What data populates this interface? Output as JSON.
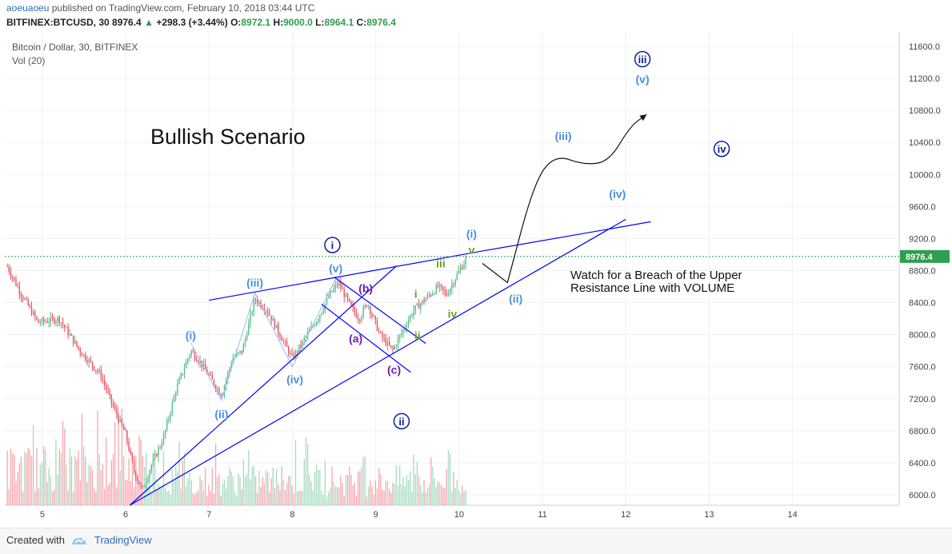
{
  "header": {
    "user": "aoeuaoeu",
    "published": "published on TradingView.com, February 10, 2018 03:44 UTC",
    "symbol": "BITFINEX:BTCUSD, 30",
    "last": "8976.4",
    "arrow": "▲",
    "change": "+298.3 (+3.44%)",
    "o_label": "O:",
    "o": "8972.1",
    "h_label": "H:",
    "h": "9000.0",
    "l_label": "L:",
    "l": "8964.1",
    "c_label": "C:",
    "c": "8976.4"
  },
  "legend": {
    "line1": "Bitcoin / Dollar, 30, BITFINEX",
    "line2": "Vol (20)"
  },
  "footer": {
    "created": "Created with",
    "brand": "TradingView"
  },
  "colors": {
    "up": "#53b987",
    "down": "#eb4d5c",
    "trend": "#0000ff",
    "wave_light": "#4a90e2",
    "wave_dark": "#0b1e9e",
    "wave_purple": "#6a1fa8",
    "wave_green": "#6aa22b",
    "price_line": "#2e9e4f"
  },
  "chart_data": {
    "type": "candlestick",
    "title": "Bullish Scenario",
    "annotation": "Watch for a Breach of the Upper Resistance Line with VOLUME",
    "last_price": 8976.4,
    "y_ticks": [
      6000,
      6400,
      6800,
      7200,
      7600,
      8000,
      8400,
      8800,
      9200,
      9600,
      10000,
      10400,
      10800,
      11200,
      11600
    ],
    "y_tick_labels": [
      "6000.0",
      "6400.0",
      "6800.0",
      "7200.0",
      "7600.0",
      "8000.0",
      "8400.0",
      "8800.0",
      "9200.0",
      "9600.0",
      "10000.0",
      "10400.0",
      "10800.0",
      "11200.0",
      "11600.0"
    ],
    "ylim": [
      5870,
      11780
    ],
    "x_ticks": [
      5,
      6,
      7,
      8,
      9,
      10,
      11,
      12,
      13,
      14
    ],
    "x_tick_labels": [
      "5",
      "6",
      "7",
      "8",
      "9",
      "10",
      "11",
      "12",
      "13",
      "14"
    ],
    "xlim": [
      4.55,
      15.28
    ],
    "x_unit": "day of February 2018",
    "price_path": [
      [
        4.58,
        8850
      ],
      [
        4.75,
        8500
      ],
      [
        4.95,
        8150
      ],
      [
        5.2,
        8200
      ],
      [
        5.45,
        7800
      ],
      [
        5.7,
        7500
      ],
      [
        5.85,
        7100
      ],
      [
        6.0,
        6750
      ],
      [
        6.1,
        6300
      ],
      [
        6.2,
        6050
      ],
      [
        6.3,
        6350
      ],
      [
        6.45,
        6700
      ],
      [
        6.6,
        7300
      ],
      [
        6.78,
        7800
      ],
      [
        6.9,
        7650
      ],
      [
        7.05,
        7400
      ],
      [
        7.15,
        7250
      ],
      [
        7.28,
        7700
      ],
      [
        7.4,
        7800
      ],
      [
        7.55,
        8450
      ],
      [
        7.7,
        8300
      ],
      [
        7.85,
        8000
      ],
      [
        8.0,
        7700
      ],
      [
        8.15,
        7950
      ],
      [
        8.3,
        8200
      ],
      [
        8.45,
        8500
      ],
      [
        8.55,
        8650
      ],
      [
        8.7,
        8350
      ],
      [
        8.8,
        8200
      ],
      [
        8.9,
        8400
      ],
      [
        9.05,
        8000
      ],
      [
        9.2,
        7800
      ],
      [
        9.3,
        8000
      ],
      [
        9.45,
        8300
      ],
      [
        9.6,
        8450
      ],
      [
        9.75,
        8600
      ],
      [
        9.85,
        8500
      ],
      [
        9.95,
        8700
      ],
      [
        10.1,
        8976
      ]
    ],
    "volume_max": 1000,
    "trend_lines": [
      {
        "name": "upper-resistance",
        "from": [
          7.0,
          8430
        ],
        "to": [
          10.2,
          9030
        ]
      },
      {
        "name": "upper-resistance-ext",
        "from": [
          10.2,
          9030
        ],
        "to": [
          12.3,
          9410
        ]
      },
      {
        "name": "lower-support-long",
        "from": [
          6.05,
          5870
        ],
        "to": [
          12.0,
          9440
        ]
      },
      {
        "name": "lower-support-steep",
        "from": [
          6.05,
          5870
        ],
        "to": [
          9.25,
          8860
        ]
      },
      {
        "name": "abc-upper",
        "from": [
          8.5,
          8720
        ],
        "to": [
          9.6,
          7890
        ]
      },
      {
        "name": "abc-lower",
        "from": [
          8.35,
          8380
        ],
        "to": [
          9.42,
          7530
        ]
      }
    ],
    "wave_labels": [
      {
        "text": "(i)",
        "x": 6.78,
        "y": 7990,
        "color": "wave_light",
        "circle": false
      },
      {
        "text": "(ii)",
        "x": 7.15,
        "y": 7010,
        "color": "wave_light",
        "circle": false
      },
      {
        "text": "(iii)",
        "x": 7.55,
        "y": 8650,
        "color": "wave_light",
        "circle": false
      },
      {
        "text": "(iv)",
        "x": 8.03,
        "y": 7440,
        "color": "wave_light",
        "circle": false
      },
      {
        "text": "(v)",
        "x": 8.52,
        "y": 8830,
        "color": "wave_light",
        "circle": false
      },
      {
        "text": "i",
        "x": 8.48,
        "y": 9120,
        "color": "wave_dark",
        "circle": true
      },
      {
        "text": "ii",
        "x": 9.31,
        "y": 6920,
        "color": "wave_dark",
        "circle": true
      },
      {
        "text": "(a)",
        "x": 8.76,
        "y": 7950,
        "color": "wave_purple",
        "circle": false
      },
      {
        "text": "(b)",
        "x": 8.88,
        "y": 8580,
        "color": "wave_purple",
        "circle": false
      },
      {
        "text": "(c)",
        "x": 9.22,
        "y": 7560,
        "color": "wave_purple",
        "circle": false
      },
      {
        "text": "i",
        "x": 9.48,
        "y": 8510,
        "color": "wave_green",
        "circle": false
      },
      {
        "text": "ii",
        "x": 9.5,
        "y": 7990,
        "color": "wave_green",
        "circle": false
      },
      {
        "text": "iii",
        "x": 9.78,
        "y": 8890,
        "color": "wave_green",
        "circle": false
      },
      {
        "text": "iv",
        "x": 9.92,
        "y": 8260,
        "color": "wave_green",
        "circle": false
      },
      {
        "text": "v",
        "x": 10.15,
        "y": 9060,
        "color": "wave_green",
        "circle": false
      },
      {
        "text": "(i)",
        "x": 10.15,
        "y": 9260,
        "color": "wave_light",
        "circle": false
      },
      {
        "text": "(ii)",
        "x": 10.68,
        "y": 8450,
        "color": "wave_light",
        "circle": false
      },
      {
        "text": "(iii)",
        "x": 11.25,
        "y": 10480,
        "color": "wave_light",
        "circle": false
      },
      {
        "text": "(iv)",
        "x": 11.9,
        "y": 9760,
        "color": "wave_light",
        "circle": false
      },
      {
        "text": "(v)",
        "x": 12.2,
        "y": 11190,
        "color": "wave_light",
        "circle": false
      },
      {
        "text": "iii",
        "x": 12.2,
        "y": 11440,
        "color": "wave_dark",
        "circle": true
      },
      {
        "text": "iv",
        "x": 13.15,
        "y": 10320,
        "color": "wave_dark",
        "circle": true
      }
    ],
    "projection": [
      [
        10.28,
        8890
      ],
      [
        10.58,
        8650
      ],
      [
        10.9,
        9900
      ],
      [
        11.15,
        10250
      ],
      [
        11.5,
        10120
      ],
      [
        11.8,
        10160
      ],
      [
        12.05,
        10600
      ],
      [
        12.25,
        10750
      ]
    ]
  }
}
